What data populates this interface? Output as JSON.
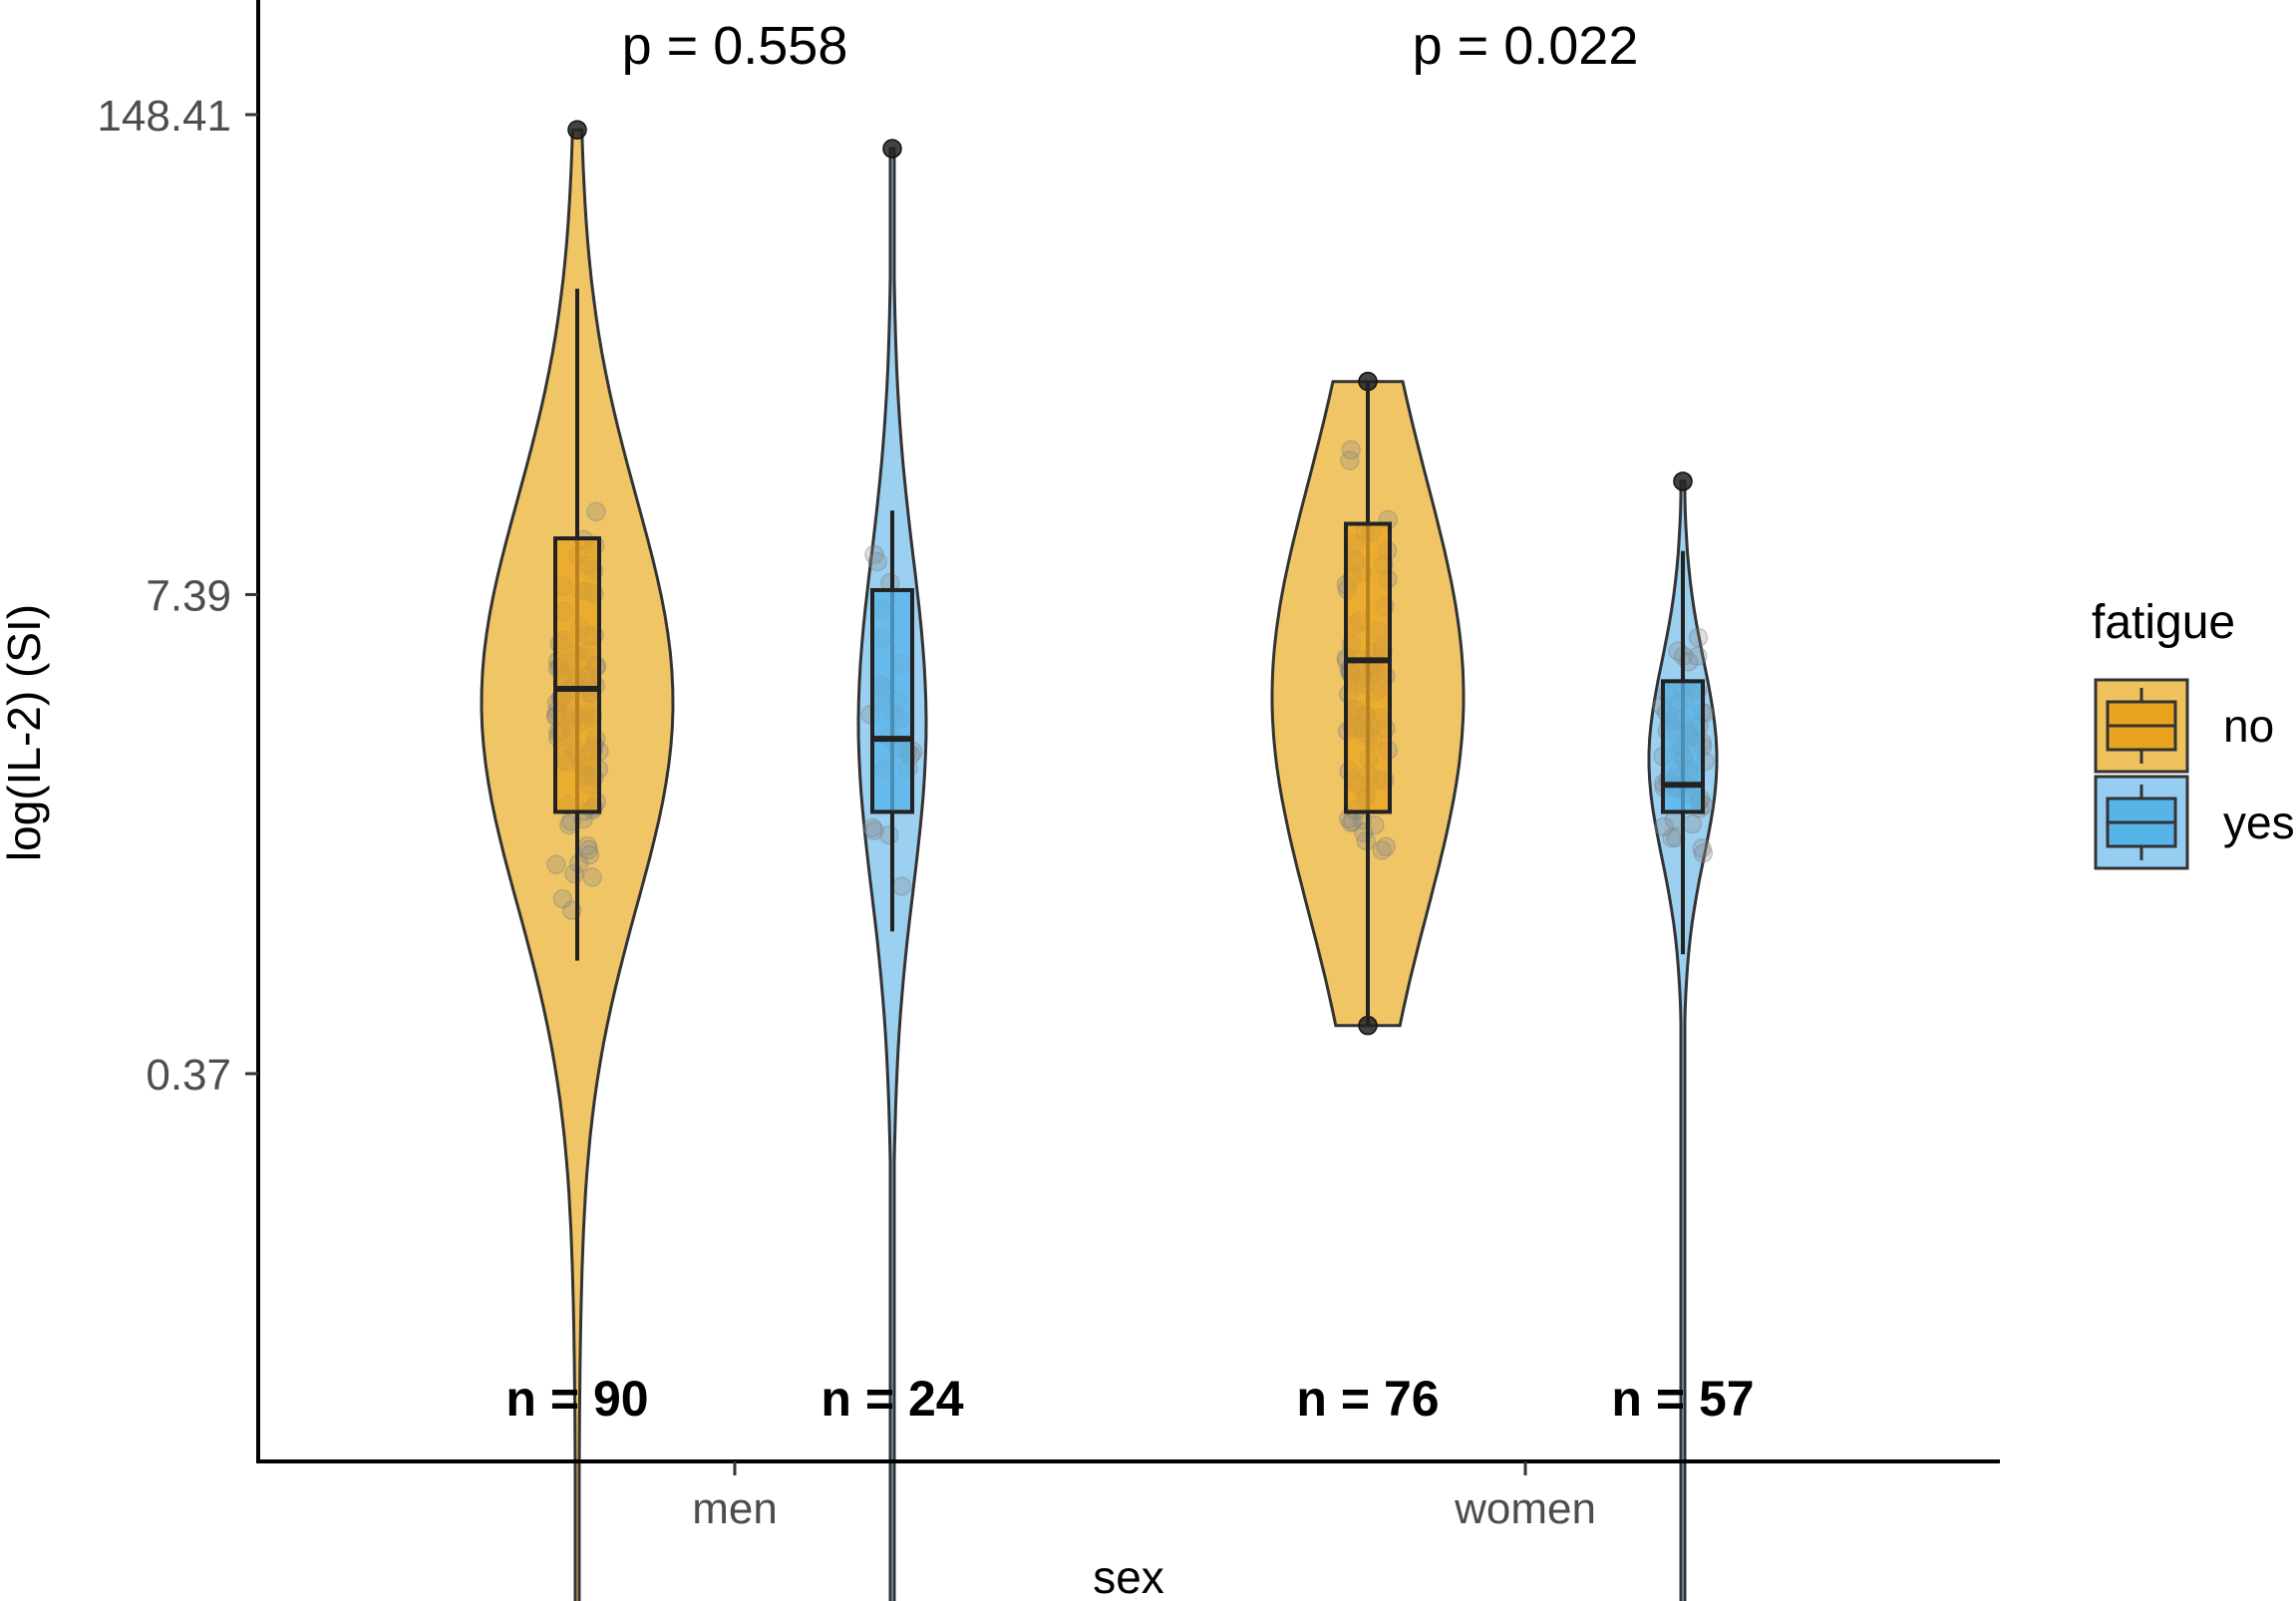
{
  "chart_data": {
    "type": "violin",
    "xlabel": "sex",
    "ylabel": "log(IL-2) (SI)",
    "y_scale": "log",
    "ylim": [
      0.005,
      245
    ],
    "y_ticks": [
      {
        "value": 0.37,
        "label": "0.37"
      },
      {
        "value": 7.39,
        "label": "7.39"
      },
      {
        "value": 148.41,
        "label": "148.41"
      }
    ],
    "categories": [
      "men",
      "women"
    ],
    "p_values": [
      "p = 0.558",
      "p = 0.022"
    ],
    "legend": {
      "title": "fatigue",
      "position": "right",
      "entries": [
        "no",
        "yes"
      ]
    },
    "colors": {
      "no": "#E9A31F",
      "yes": "#56B4E9",
      "no_fill": "#EFC25E",
      "yes_fill": "#96CDF0"
    },
    "grid": false,
    "groups": [
      {
        "category": "men",
        "fatigue": "no",
        "n_label": "n = 90",
        "min": 0.012,
        "q1": 1.9,
        "median": 4.1,
        "q3": 10.5,
        "max": 135,
        "whisker_low": 0.75,
        "whisker_high": 50
      },
      {
        "category": "men",
        "fatigue": "yes",
        "n_label": "n = 24",
        "min": 0.012,
        "q1": 1.9,
        "median": 3.0,
        "q3": 7.6,
        "max": 120,
        "whisker_low": 0.9,
        "whisker_high": 12.5
      },
      {
        "category": "women",
        "fatigue": "no",
        "n_label": "n = 76",
        "min": 0.5,
        "q1": 1.9,
        "median": 4.9,
        "q3": 11.5,
        "max": 28,
        "whisker_low": 0.5,
        "whisker_high": 28
      },
      {
        "category": "women",
        "fatigue": "yes",
        "n_label": "n = 57",
        "min": 0.012,
        "q1": 1.9,
        "median": 2.25,
        "q3": 4.3,
        "max": 15,
        "whisker_low": 0.78,
        "whisker_high": 9.7
      }
    ]
  }
}
